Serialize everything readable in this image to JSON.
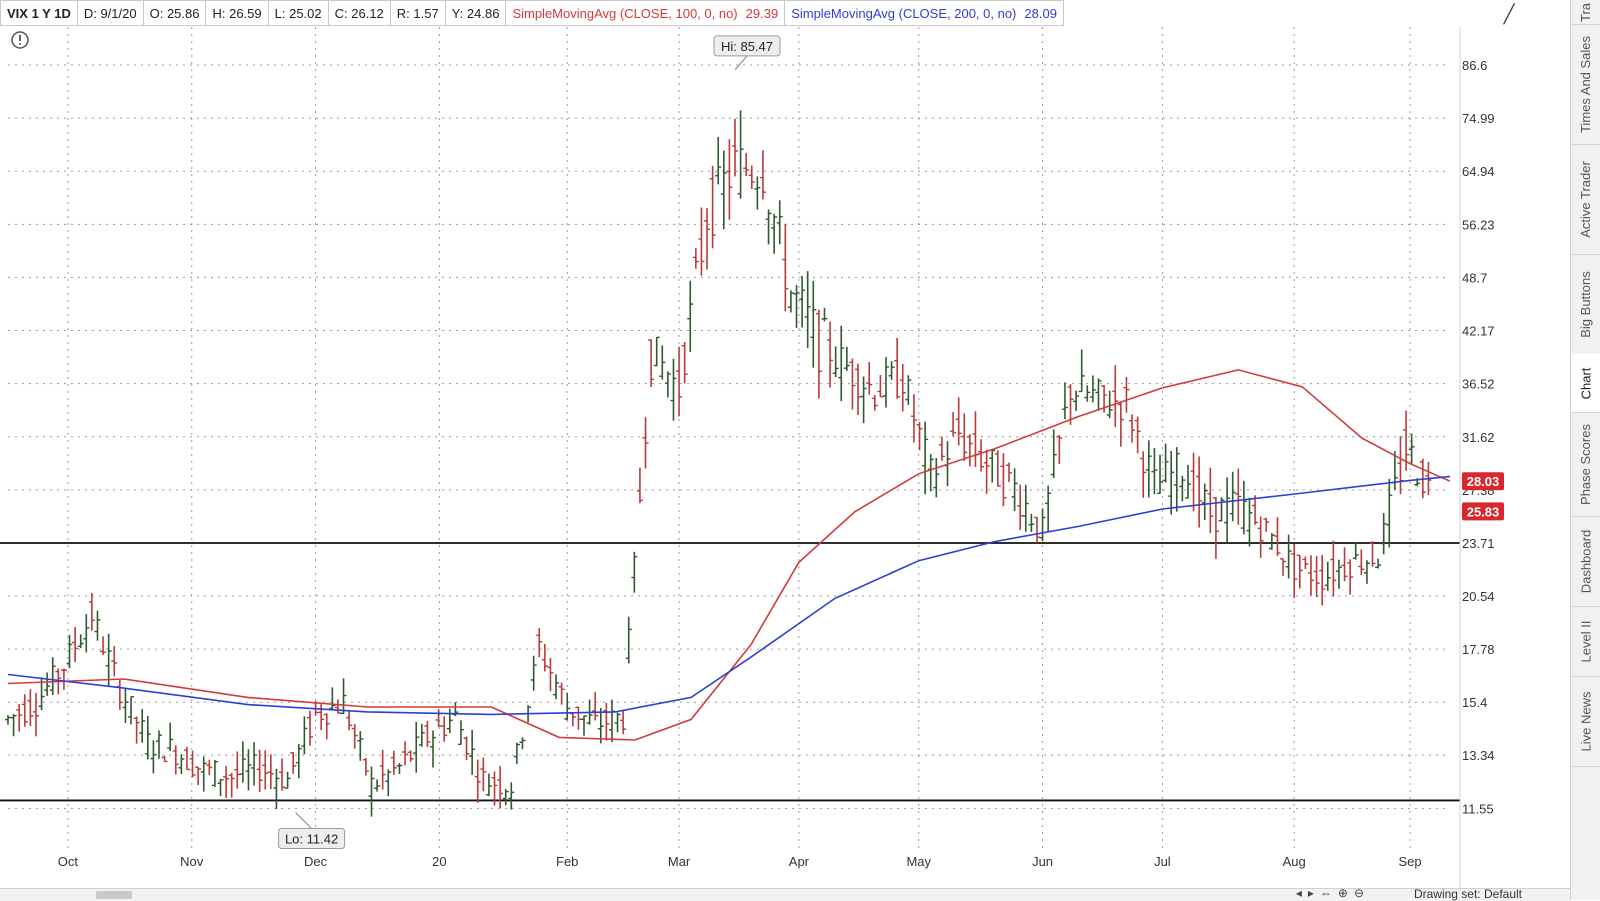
{
  "header": {
    "symbol": "VIX 1 Y 1D",
    "date": "D: 9/1/20",
    "open": "O: 25.86",
    "high": "H: 26.59",
    "low": "L: 25.02",
    "close": "C: 26.12",
    "range": "R: 1.57",
    "y": "Y: 24.86",
    "sma100_label": "SimpleMovingAvg (CLOSE, 100, 0, no)",
    "sma100_value": "29.39",
    "sma200_label": "SimpleMovingAvg (CLOSE, 200, 0, no)",
    "sma200_value": "28.09"
  },
  "sidebar": {
    "tabs": [
      {
        "label": "Tra"
      },
      {
        "label": "Times And Sales"
      },
      {
        "label": "Active Trader"
      },
      {
        "label": "Big Buttons"
      },
      {
        "label": "Chart"
      },
      {
        "label": "Phase Scores"
      },
      {
        "label": "Dashboard"
      },
      {
        "label": "Level II"
      },
      {
        "label": "Live News"
      }
    ]
  },
  "footer": {
    "drawing_set": "Drawing set: Default"
  },
  "colors": {
    "sma100": "#d23a3a",
    "sma200": "#2d3fd4",
    "bars": "#2f5a2f",
    "badge_red": "#d9272e"
  },
  "chart_data": {
    "type": "ohlc",
    "symbol": "VIX",
    "y_scale": "log",
    "ylim": [
      10.6,
      96
    ],
    "y_ticks": [
      86.6,
      74.99,
      64.94,
      56.23,
      48.7,
      42.17,
      36.52,
      31.62,
      27.38,
      23.71,
      20.54,
      17.78,
      15.4,
      13.34,
      11.55
    ],
    "x_ticks": [
      {
        "label": "Oct",
        "date": "2019-10-01"
      },
      {
        "label": "Nov",
        "date": "2019-11-01"
      },
      {
        "label": "Dec",
        "date": "2019-12-02"
      },
      {
        "label": "20",
        "date": "2020-01-02"
      },
      {
        "label": "Feb",
        "date": "2020-02-03"
      },
      {
        "label": "Mar",
        "date": "2020-03-02"
      },
      {
        "label": "Apr",
        "date": "2020-04-01"
      },
      {
        "label": "May",
        "date": "2020-05-01"
      },
      {
        "label": "Jun",
        "date": "2020-06-01"
      },
      {
        "label": "Jul",
        "date": "2020-07-01"
      },
      {
        "label": "Aug",
        "date": "2020-08-03"
      },
      {
        "label": "Sep",
        "date": "2020-09-01"
      }
    ],
    "x_range": [
      "2019-09-16",
      "2020-09-11"
    ],
    "grid": true,
    "horizontal_lines": [
      23.71,
      11.8
    ],
    "annotations": [
      {
        "text": "Hi: 85.47",
        "date": "2020-03-16",
        "value": 85.47
      },
      {
        "text": "Lo: 11.42",
        "date": "2019-11-27",
        "value": 11.42
      }
    ],
    "price_badges": [
      {
        "text": "28.03",
        "value": 28.03
      },
      {
        "text": "25.83",
        "value": 25.83
      }
    ],
    "series": [
      {
        "name": "VIX",
        "ohlc_close": [
          [
            "2019-09-16",
            14.7
          ],
          [
            "2019-09-23",
            15.4
          ],
          [
            "2019-09-30",
            17.0
          ],
          [
            "2019-10-07",
            19.5
          ],
          [
            "2019-10-14",
            16.0
          ],
          [
            "2019-10-21",
            13.8
          ],
          [
            "2019-10-28",
            13.5
          ],
          [
            "2019-11-04",
            12.8
          ],
          [
            "2019-11-11",
            12.6
          ],
          [
            "2019-11-18",
            12.9
          ],
          [
            "2019-11-25",
            12.5
          ],
          [
            "2019-12-02",
            14.9
          ],
          [
            "2019-12-09",
            15.4
          ],
          [
            "2019-12-16",
            12.3
          ],
          [
            "2019-12-23",
            12.9
          ],
          [
            "2019-12-30",
            14.0
          ],
          [
            "2020-01-06",
            14.8
          ],
          [
            "2020-01-13",
            12.5
          ],
          [
            "2020-01-20",
            12.3
          ],
          [
            "2020-01-27",
            17.9
          ],
          [
            "2020-02-03",
            15.2
          ],
          [
            "2020-02-10",
            14.5
          ],
          [
            "2020-02-17",
            14.8
          ],
          [
            "2020-02-24",
            40.1
          ],
          [
            "2020-03-02",
            36.0
          ],
          [
            "2020-03-09",
            57.8
          ],
          [
            "2020-03-16",
            66.0
          ],
          [
            "2020-03-23",
            65.5
          ],
          [
            "2020-03-30",
            46.8
          ],
          [
            "2020-04-06",
            41.0
          ],
          [
            "2020-04-13",
            38.2
          ],
          [
            "2020-04-20",
            35.9
          ],
          [
            "2020-04-27",
            37.2
          ],
          [
            "2020-05-04",
            28.4
          ],
          [
            "2020-05-11",
            31.9
          ],
          [
            "2020-05-18",
            29.5
          ],
          [
            "2020-05-25",
            27.5
          ],
          [
            "2020-06-01",
            24.5
          ],
          [
            "2020-06-08",
            36.1
          ],
          [
            "2020-06-15",
            35.1
          ],
          [
            "2020-06-22",
            34.7
          ],
          [
            "2020-06-29",
            27.7
          ],
          [
            "2020-07-06",
            29.0
          ],
          [
            "2020-07-13",
            25.7
          ],
          [
            "2020-07-20",
            26.2
          ],
          [
            "2020-07-27",
            24.5
          ],
          [
            "2020-08-03",
            22.2
          ],
          [
            "2020-08-10",
            21.6
          ],
          [
            "2020-08-17",
            22.5
          ],
          [
            "2020-08-24",
            22.9
          ],
          [
            "2020-08-31",
            30.7
          ],
          [
            "2020-09-07",
            26.9
          ]
        ]
      },
      {
        "name": "SimpleMovingAvg (CLOSE, 100, 0, no)",
        "points": [
          [
            "2019-09-16",
            16.2
          ],
          [
            "2019-10-15",
            16.4
          ],
          [
            "2019-11-15",
            15.6
          ],
          [
            "2019-12-15",
            15.2
          ],
          [
            "2020-01-15",
            15.2
          ],
          [
            "2020-02-01",
            14.0
          ],
          [
            "2020-02-20",
            13.9
          ],
          [
            "2020-03-05",
            14.7
          ],
          [
            "2020-03-20",
            18.0
          ],
          [
            "2020-04-01",
            22.5
          ],
          [
            "2020-04-15",
            25.8
          ],
          [
            "2020-05-01",
            28.6
          ],
          [
            "2020-05-20",
            30.6
          ],
          [
            "2020-06-10",
            33.4
          ],
          [
            "2020-07-01",
            36.1
          ],
          [
            "2020-07-20",
            37.9
          ],
          [
            "2020-08-05",
            36.2
          ],
          [
            "2020-08-20",
            31.5
          ],
          [
            "2020-09-01",
            29.39
          ],
          [
            "2020-09-11",
            28.03
          ]
        ]
      },
      {
        "name": "SimpleMovingAvg (CLOSE, 200, 0, no)",
        "points": [
          [
            "2019-09-16",
            16.6
          ],
          [
            "2019-10-15",
            16.0
          ],
          [
            "2019-11-15",
            15.3
          ],
          [
            "2019-12-15",
            15.0
          ],
          [
            "2020-01-15",
            14.9
          ],
          [
            "2020-02-15",
            15.0
          ],
          [
            "2020-03-05",
            15.6
          ],
          [
            "2020-03-20",
            17.4
          ],
          [
            "2020-04-10",
            20.4
          ],
          [
            "2020-05-01",
            22.6
          ],
          [
            "2020-05-20",
            23.8
          ],
          [
            "2020-06-10",
            24.8
          ],
          [
            "2020-07-01",
            26.0
          ],
          [
            "2020-08-01",
            27.0
          ],
          [
            "2020-09-01",
            28.09
          ],
          [
            "2020-09-11",
            28.4
          ]
        ]
      }
    ]
  }
}
